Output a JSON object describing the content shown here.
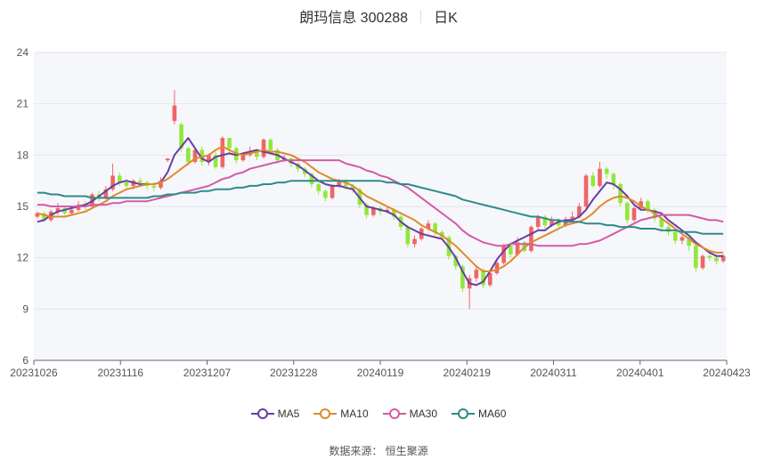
{
  "header": {
    "name_code": "朗玛信息 300288",
    "period": "日K"
  },
  "source": "数据来源：  恒生聚源",
  "chart_data": {
    "type": "candlestick",
    "ylim": [
      6,
      24
    ],
    "yticks": [
      6,
      9,
      12,
      15,
      18,
      21,
      24
    ],
    "x_labels": [
      "20231026",
      "20231116",
      "20231207",
      "20231228",
      "20240119",
      "20240219",
      "20240311",
      "20240401",
      "20240423"
    ],
    "up_color": "#ee6666",
    "down_color": "#91e83a",
    "candles": [
      [
        14.4,
        14.6,
        14.7,
        14.3
      ],
      [
        14.6,
        14.2,
        14.7,
        14.1
      ],
      [
        14.2,
        14.7,
        14.8,
        14.1
      ],
      [
        14.7,
        14.9,
        15.2,
        14.5
      ],
      [
        14.9,
        14.6,
        15.0,
        14.5
      ],
      [
        14.6,
        14.8,
        15.0,
        14.5
      ],
      [
        14.8,
        15.1,
        15.3,
        14.7
      ],
      [
        15.1,
        15.0,
        15.3,
        14.8
      ],
      [
        15.0,
        15.7,
        15.8,
        14.9
      ],
      [
        15.7,
        15.5,
        15.9,
        15.3
      ],
      [
        15.5,
        16.0,
        16.2,
        15.4
      ],
      [
        16.0,
        16.8,
        17.5,
        15.9
      ],
      [
        16.8,
        16.4,
        17.0,
        16.2
      ],
      [
        16.4,
        16.2,
        16.6,
        16.0
      ],
      [
        16.2,
        16.5,
        16.6,
        16.0
      ],
      [
        16.5,
        16.4,
        16.7,
        16.2
      ],
      [
        16.4,
        16.2,
        16.5,
        16.0
      ],
      [
        16.2,
        16.1,
        16.4,
        15.9
      ],
      [
        16.1,
        16.5,
        16.7,
        16.0
      ],
      [
        17.7,
        17.8,
        17.8,
        17.6
      ],
      [
        20.0,
        20.9,
        21.8,
        19.8
      ],
      [
        19.8,
        18.4,
        19.9,
        18.2
      ],
      [
        18.4,
        17.6,
        18.5,
        17.4
      ],
      [
        17.6,
        18.3,
        18.4,
        17.5
      ],
      [
        18.3,
        17.6,
        18.5,
        17.4
      ],
      [
        17.6,
        18.0,
        18.1,
        17.4
      ],
      [
        18.0,
        17.3,
        18.2,
        17.2
      ],
      [
        17.3,
        19.0,
        19.1,
        17.2
      ],
      [
        19.0,
        18.4,
        19.0,
        18.1
      ],
      [
        18.4,
        17.7,
        18.5,
        17.5
      ],
      [
        17.7,
        18.0,
        18.1,
        17.6
      ],
      [
        18.0,
        18.2,
        18.5,
        17.9
      ],
      [
        18.2,
        17.9,
        18.3,
        17.7
      ],
      [
        17.9,
        18.9,
        19.0,
        17.8
      ],
      [
        18.9,
        18.3,
        19.0,
        18.1
      ],
      [
        18.3,
        17.7,
        18.4,
        17.5
      ],
      [
        17.7,
        17.8,
        18.0,
        17.6
      ],
      [
        17.8,
        17.5,
        17.9,
        17.3
      ],
      [
        17.5,
        17.2,
        17.6,
        17.0
      ],
      [
        17.2,
        16.9,
        17.3,
        16.7
      ],
      [
        16.9,
        16.3,
        17.0,
        16.1
      ],
      [
        16.3,
        15.9,
        16.4,
        15.7
      ],
      [
        15.9,
        15.5,
        16.0,
        15.3
      ],
      [
        15.5,
        16.2,
        16.3,
        15.4
      ],
      [
        16.2,
        16.5,
        16.6,
        16.1
      ],
      [
        16.5,
        16.2,
        16.6,
        16.0
      ],
      [
        16.2,
        16.0,
        16.3,
        15.8
      ],
      [
        16.0,
        15.1,
        16.1,
        14.9
      ],
      [
        15.1,
        14.5,
        15.2,
        14.3
      ],
      [
        14.5,
        14.9,
        15.0,
        14.4
      ],
      [
        14.9,
        14.7,
        15.0,
        14.5
      ],
      [
        14.7,
        14.8,
        15.0,
        14.6
      ],
      [
        14.8,
        14.4,
        14.9,
        14.2
      ],
      [
        14.4,
        13.8,
        14.5,
        13.6
      ],
      [
        13.8,
        12.8,
        13.9,
        12.6
      ],
      [
        12.8,
        13.1,
        13.3,
        12.6
      ],
      [
        13.1,
        13.7,
        13.8,
        13.0
      ],
      [
        13.7,
        14.0,
        14.2,
        13.6
      ],
      [
        14.0,
        13.5,
        14.1,
        13.3
      ],
      [
        13.5,
        13.2,
        13.6,
        13.0
      ],
      [
        13.2,
        12.1,
        13.3,
        11.9
      ],
      [
        12.1,
        11.5,
        12.2,
        11.3
      ],
      [
        11.5,
        10.2,
        11.6,
        10.0
      ],
      [
        10.2,
        10.8,
        11.0,
        9.0
      ],
      [
        10.8,
        11.3,
        11.5,
        10.6
      ],
      [
        11.3,
        10.4,
        11.4,
        10.2
      ],
      [
        10.4,
        11.1,
        11.3,
        10.3
      ],
      [
        11.1,
        11.7,
        11.9,
        11.0
      ],
      [
        11.7,
        12.7,
        12.8,
        11.6
      ],
      [
        12.7,
        12.2,
        12.9,
        12.0
      ],
      [
        12.2,
        12.9,
        13.2,
        12.1
      ],
      [
        12.9,
        12.4,
        13.0,
        12.3
      ],
      [
        12.4,
        13.8,
        13.9,
        12.3
      ],
      [
        13.8,
        14.4,
        14.5,
        13.6
      ],
      [
        14.4,
        13.9,
        14.5,
        13.7
      ],
      [
        13.9,
        14.2,
        14.4,
        13.8
      ],
      [
        14.2,
        13.9,
        14.3,
        13.7
      ],
      [
        13.9,
        14.2,
        14.4,
        13.8
      ],
      [
        14.2,
        14.4,
        14.7,
        14.1
      ],
      [
        14.4,
        15.0,
        15.2,
        14.3
      ],
      [
        15.0,
        16.8,
        16.9,
        14.9
      ],
      [
        16.8,
        16.2,
        17.0,
        16.1
      ],
      [
        16.2,
        17.2,
        17.6,
        16.1
      ],
      [
        17.2,
        16.9,
        17.3,
        16.6
      ],
      [
        16.9,
        16.3,
        17.0,
        16.0
      ],
      [
        16.3,
        15.2,
        16.4,
        15.0
      ],
      [
        15.2,
        14.2,
        15.3,
        14.0
      ],
      [
        14.2,
        14.9,
        15.0,
        14.1
      ],
      [
        14.9,
        15.3,
        15.5,
        14.8
      ],
      [
        15.3,
        14.8,
        15.4,
        14.6
      ],
      [
        14.8,
        14.3,
        14.9,
        14.1
      ],
      [
        14.3,
        13.8,
        14.4,
        13.6
      ],
      [
        13.8,
        13.5,
        13.9,
        13.3
      ],
      [
        13.5,
        13.0,
        13.6,
        12.8
      ],
      [
        13.0,
        13.2,
        13.3,
        12.8
      ],
      [
        13.2,
        12.7,
        13.3,
        12.4
      ],
      [
        12.7,
        11.4,
        12.8,
        11.2
      ],
      [
        11.4,
        12.1,
        12.2,
        11.3
      ],
      [
        12.1,
        12.0,
        12.3,
        11.8
      ],
      [
        12.0,
        11.8,
        12.1,
        11.6
      ],
      [
        11.8,
        12.1,
        12.2,
        11.7
      ]
    ],
    "series": [
      {
        "name": "MA5",
        "color": "#6a3da3",
        "values": [
          14.1,
          14.2,
          14.5,
          14.7,
          14.8,
          14.9,
          15.0,
          15.1,
          15.3,
          15.6,
          15.9,
          16.2,
          16.4,
          16.5,
          16.4,
          16.3,
          16.3,
          16.3,
          16.4,
          17.0,
          18.0,
          18.5,
          19.0,
          18.4,
          17.8,
          17.6,
          17.9,
          18.0,
          18.1,
          18.0,
          18.1,
          18.2,
          18.3,
          18.2,
          18.1,
          18.0,
          17.8,
          17.6,
          17.4,
          17.1,
          16.8,
          16.5,
          16.3,
          16.2,
          16.2,
          16.1,
          16.0,
          15.5,
          15.0,
          14.9,
          14.8,
          14.7,
          14.5,
          14.1,
          13.8,
          13.6,
          13.4,
          13.3,
          13.2,
          13.1,
          12.6,
          12.0,
          11.2,
          10.5,
          10.4,
          10.6,
          11.2,
          11.9,
          12.4,
          12.8,
          13.0,
          13.2,
          13.4,
          13.6,
          13.6,
          13.9,
          14.1,
          14.2,
          14.2,
          14.4,
          14.8,
          15.4,
          15.9,
          16.4,
          16.3,
          16.0,
          15.6,
          15.1,
          14.8,
          14.8,
          14.7,
          14.6,
          14.2,
          13.9,
          13.6,
          13.3,
          12.9,
          12.6,
          12.3,
          12.1,
          12.1
        ]
      },
      {
        "name": "MA10",
        "color": "#e08a2c",
        "values": [
          14.6,
          14.5,
          14.4,
          14.4,
          14.4,
          14.5,
          14.6,
          14.7,
          14.9,
          15.1,
          15.3,
          15.6,
          15.8,
          16.0,
          16.1,
          16.2,
          16.3,
          16.3,
          16.4,
          16.6,
          16.9,
          17.2,
          17.5,
          17.8,
          17.9,
          18.0,
          18.3,
          18.5,
          18.3,
          18.1,
          18.0,
          18.1,
          18.2,
          18.3,
          18.2,
          18.2,
          18.1,
          18.0,
          17.8,
          17.6,
          17.3,
          17.0,
          16.8,
          16.6,
          16.5,
          16.4,
          16.2,
          15.9,
          15.6,
          15.4,
          15.2,
          15.0,
          14.8,
          14.6,
          14.4,
          14.2,
          13.9,
          13.7,
          13.5,
          13.3,
          13.0,
          12.7,
          12.3,
          11.9,
          11.5,
          11.2,
          11.2,
          11.3,
          11.5,
          11.8,
          12.2,
          12.6,
          12.9,
          13.1,
          13.3,
          13.5,
          13.7,
          13.9,
          14.0,
          14.1,
          14.3,
          14.6,
          15.0,
          15.3,
          15.5,
          15.6,
          15.5,
          15.3,
          15.0,
          14.8,
          14.6,
          14.3,
          14.0,
          13.7,
          13.4,
          13.1,
          12.8,
          12.6,
          12.4,
          12.3,
          12.3
        ]
      },
      {
        "name": "MA30",
        "color": "#d35ba5",
        "values": [
          15.1,
          15.1,
          15.0,
          15.0,
          15.0,
          15.0,
          15.0,
          15.0,
          15.1,
          15.1,
          15.1,
          15.2,
          15.2,
          15.3,
          15.3,
          15.3,
          15.3,
          15.4,
          15.5,
          15.6,
          15.7,
          15.8,
          15.9,
          16.0,
          16.1,
          16.2,
          16.4,
          16.6,
          16.7,
          16.9,
          17.0,
          17.2,
          17.3,
          17.4,
          17.5,
          17.6,
          17.7,
          17.7,
          17.7,
          17.7,
          17.7,
          17.7,
          17.7,
          17.7,
          17.7,
          17.5,
          17.4,
          17.3,
          17.1,
          17.0,
          16.8,
          16.7,
          16.5,
          16.3,
          16.1,
          15.8,
          15.5,
          15.2,
          14.9,
          14.6,
          14.3,
          14.0,
          13.6,
          13.3,
          13.1,
          12.9,
          12.8,
          12.7,
          12.7,
          12.8,
          12.8,
          12.8,
          12.8,
          12.7,
          12.7,
          12.7,
          12.7,
          12.7,
          12.7,
          12.8,
          12.8,
          12.9,
          13.0,
          13.2,
          13.4,
          13.6,
          13.8,
          14.0,
          14.2,
          14.3,
          14.4,
          14.5,
          14.5,
          14.5,
          14.5,
          14.5,
          14.4,
          14.3,
          14.2,
          14.2,
          14.1
        ]
      },
      {
        "name": "MA60",
        "color": "#2e8b8b",
        "values": [
          15.8,
          15.8,
          15.7,
          15.7,
          15.6,
          15.6,
          15.6,
          15.6,
          15.5,
          15.5,
          15.5,
          15.5,
          15.5,
          15.5,
          15.5,
          15.5,
          15.5,
          15.6,
          15.6,
          15.7,
          15.7,
          15.8,
          15.8,
          15.8,
          15.9,
          15.9,
          16.0,
          16.0,
          16.0,
          16.1,
          16.1,
          16.2,
          16.2,
          16.3,
          16.3,
          16.4,
          16.4,
          16.5,
          16.5,
          16.5,
          16.5,
          16.5,
          16.5,
          16.5,
          16.5,
          16.5,
          16.5,
          16.5,
          16.5,
          16.5,
          16.5,
          16.4,
          16.4,
          16.3,
          16.3,
          16.2,
          16.1,
          16.0,
          15.9,
          15.8,
          15.7,
          15.6,
          15.4,
          15.3,
          15.2,
          15.1,
          15.0,
          14.9,
          14.8,
          14.7,
          14.6,
          14.5,
          14.4,
          14.4,
          14.3,
          14.2,
          14.2,
          14.1,
          14.1,
          14.1,
          14.0,
          14.0,
          14.0,
          13.9,
          13.9,
          13.8,
          13.8,
          13.8,
          13.7,
          13.7,
          13.7,
          13.6,
          13.6,
          13.6,
          13.5,
          13.5,
          13.5,
          13.4,
          13.4,
          13.4,
          13.4
        ]
      }
    ]
  }
}
